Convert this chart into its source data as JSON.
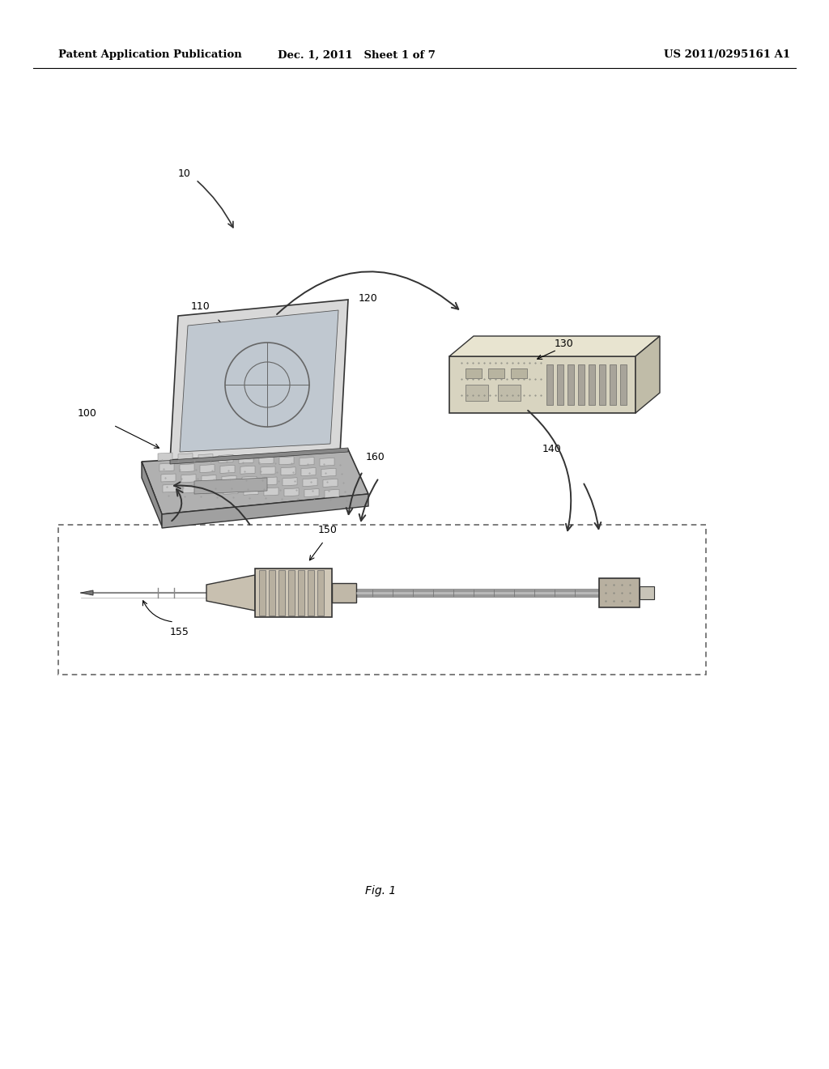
{
  "bg_color": "#ffffff",
  "header_left": "Patent Application Publication",
  "header_mid": "Dec. 1, 2011   Sheet 1 of 7",
  "header_right": "US 2011/0295161 A1",
  "fig_label": "Fig. 1",
  "draw_color": "#555555",
  "dark_color": "#333333",
  "light_gray": "#bbbbbb",
  "mid_gray": "#888888",
  "very_light": "#e8e8e8"
}
